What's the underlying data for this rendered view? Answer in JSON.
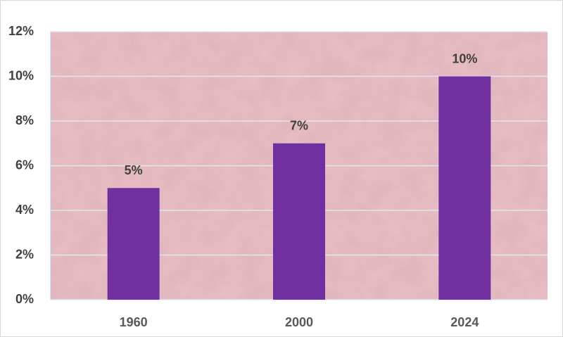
{
  "chart_data": {
    "type": "bar",
    "categories": [
      "1960",
      "2000",
      "2024"
    ],
    "values": [
      5,
      7,
      10
    ],
    "value_labels": [
      "5%",
      "7%",
      "10%"
    ],
    "color": "#7030a0",
    "ylim": [
      0,
      12
    ],
    "yticks": [
      {
        "value": 0,
        "label": "0%"
      },
      {
        "value": 2,
        "label": "2%"
      },
      {
        "value": 4,
        "label": "4%"
      },
      {
        "value": 6,
        "label": "6%"
      },
      {
        "value": 8,
        "label": "8%"
      },
      {
        "value": 10,
        "label": "10%"
      },
      {
        "value": 12,
        "label": "12%"
      }
    ],
    "grid": true
  }
}
